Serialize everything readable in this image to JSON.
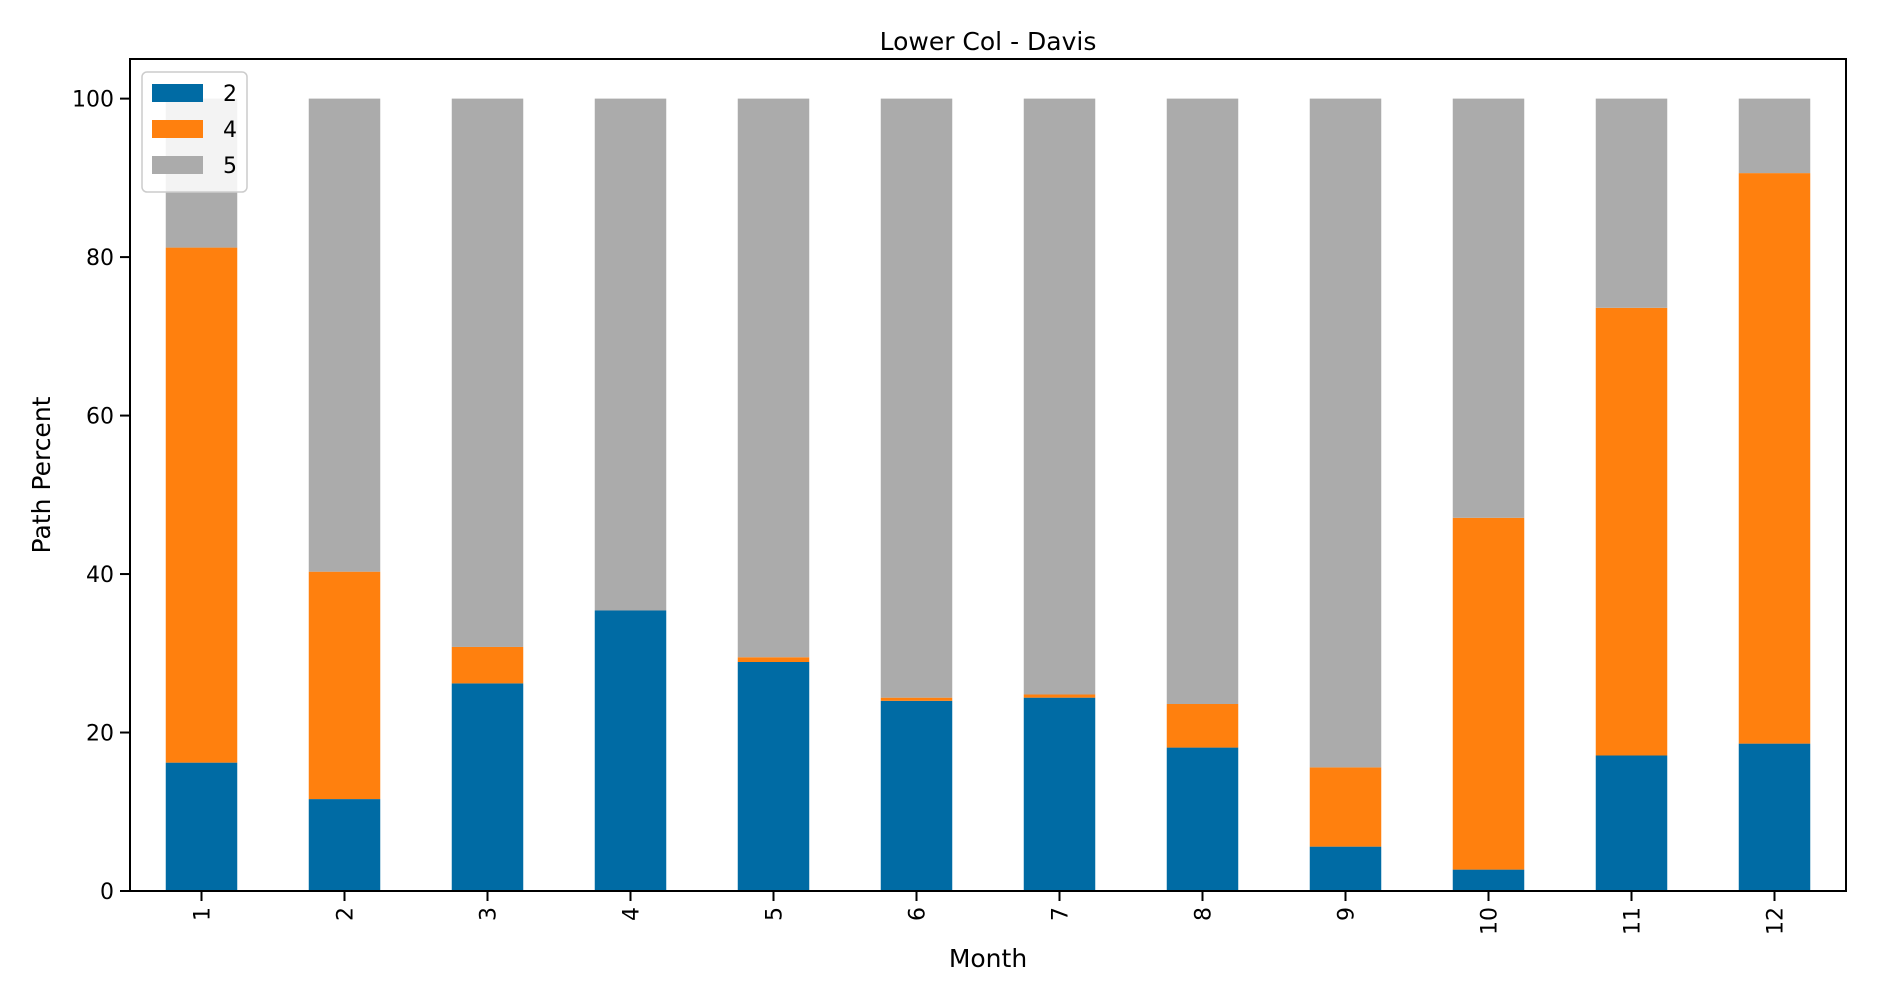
{
  "chart_data": {
    "type": "bar",
    "stacked": true,
    "title": "Lower Col - Davis",
    "xlabel": "Month",
    "ylabel": "Path Percent",
    "ylim": [
      0,
      105
    ],
    "yticks": [
      0,
      20,
      40,
      60,
      80,
      100
    ],
    "grid": false,
    "legend_position": "top-left",
    "categories": [
      "1",
      "2",
      "3",
      "4",
      "5",
      "6",
      "7",
      "8",
      "9",
      "10",
      "11",
      "12"
    ],
    "series": [
      {
        "name": "2",
        "color": "#006BA4",
        "values": [
          16.2,
          11.6,
          26.2,
          35.4,
          28.9,
          24.0,
          24.4,
          18.1,
          5.6,
          2.7,
          17.1,
          18.6
        ]
      },
      {
        "name": "4",
        "color": "#FF800E",
        "values": [
          65.0,
          28.7,
          4.6,
          0.0,
          0.6,
          0.4,
          0.4,
          5.5,
          10.0,
          44.4,
          56.5,
          72.0
        ]
      },
      {
        "name": "5",
        "color": "#ABABAB",
        "values": [
          18.8,
          59.7,
          69.2,
          64.6,
          70.5,
          75.6,
          75.2,
          76.4,
          84.4,
          52.9,
          26.4,
          9.4
        ]
      }
    ]
  }
}
